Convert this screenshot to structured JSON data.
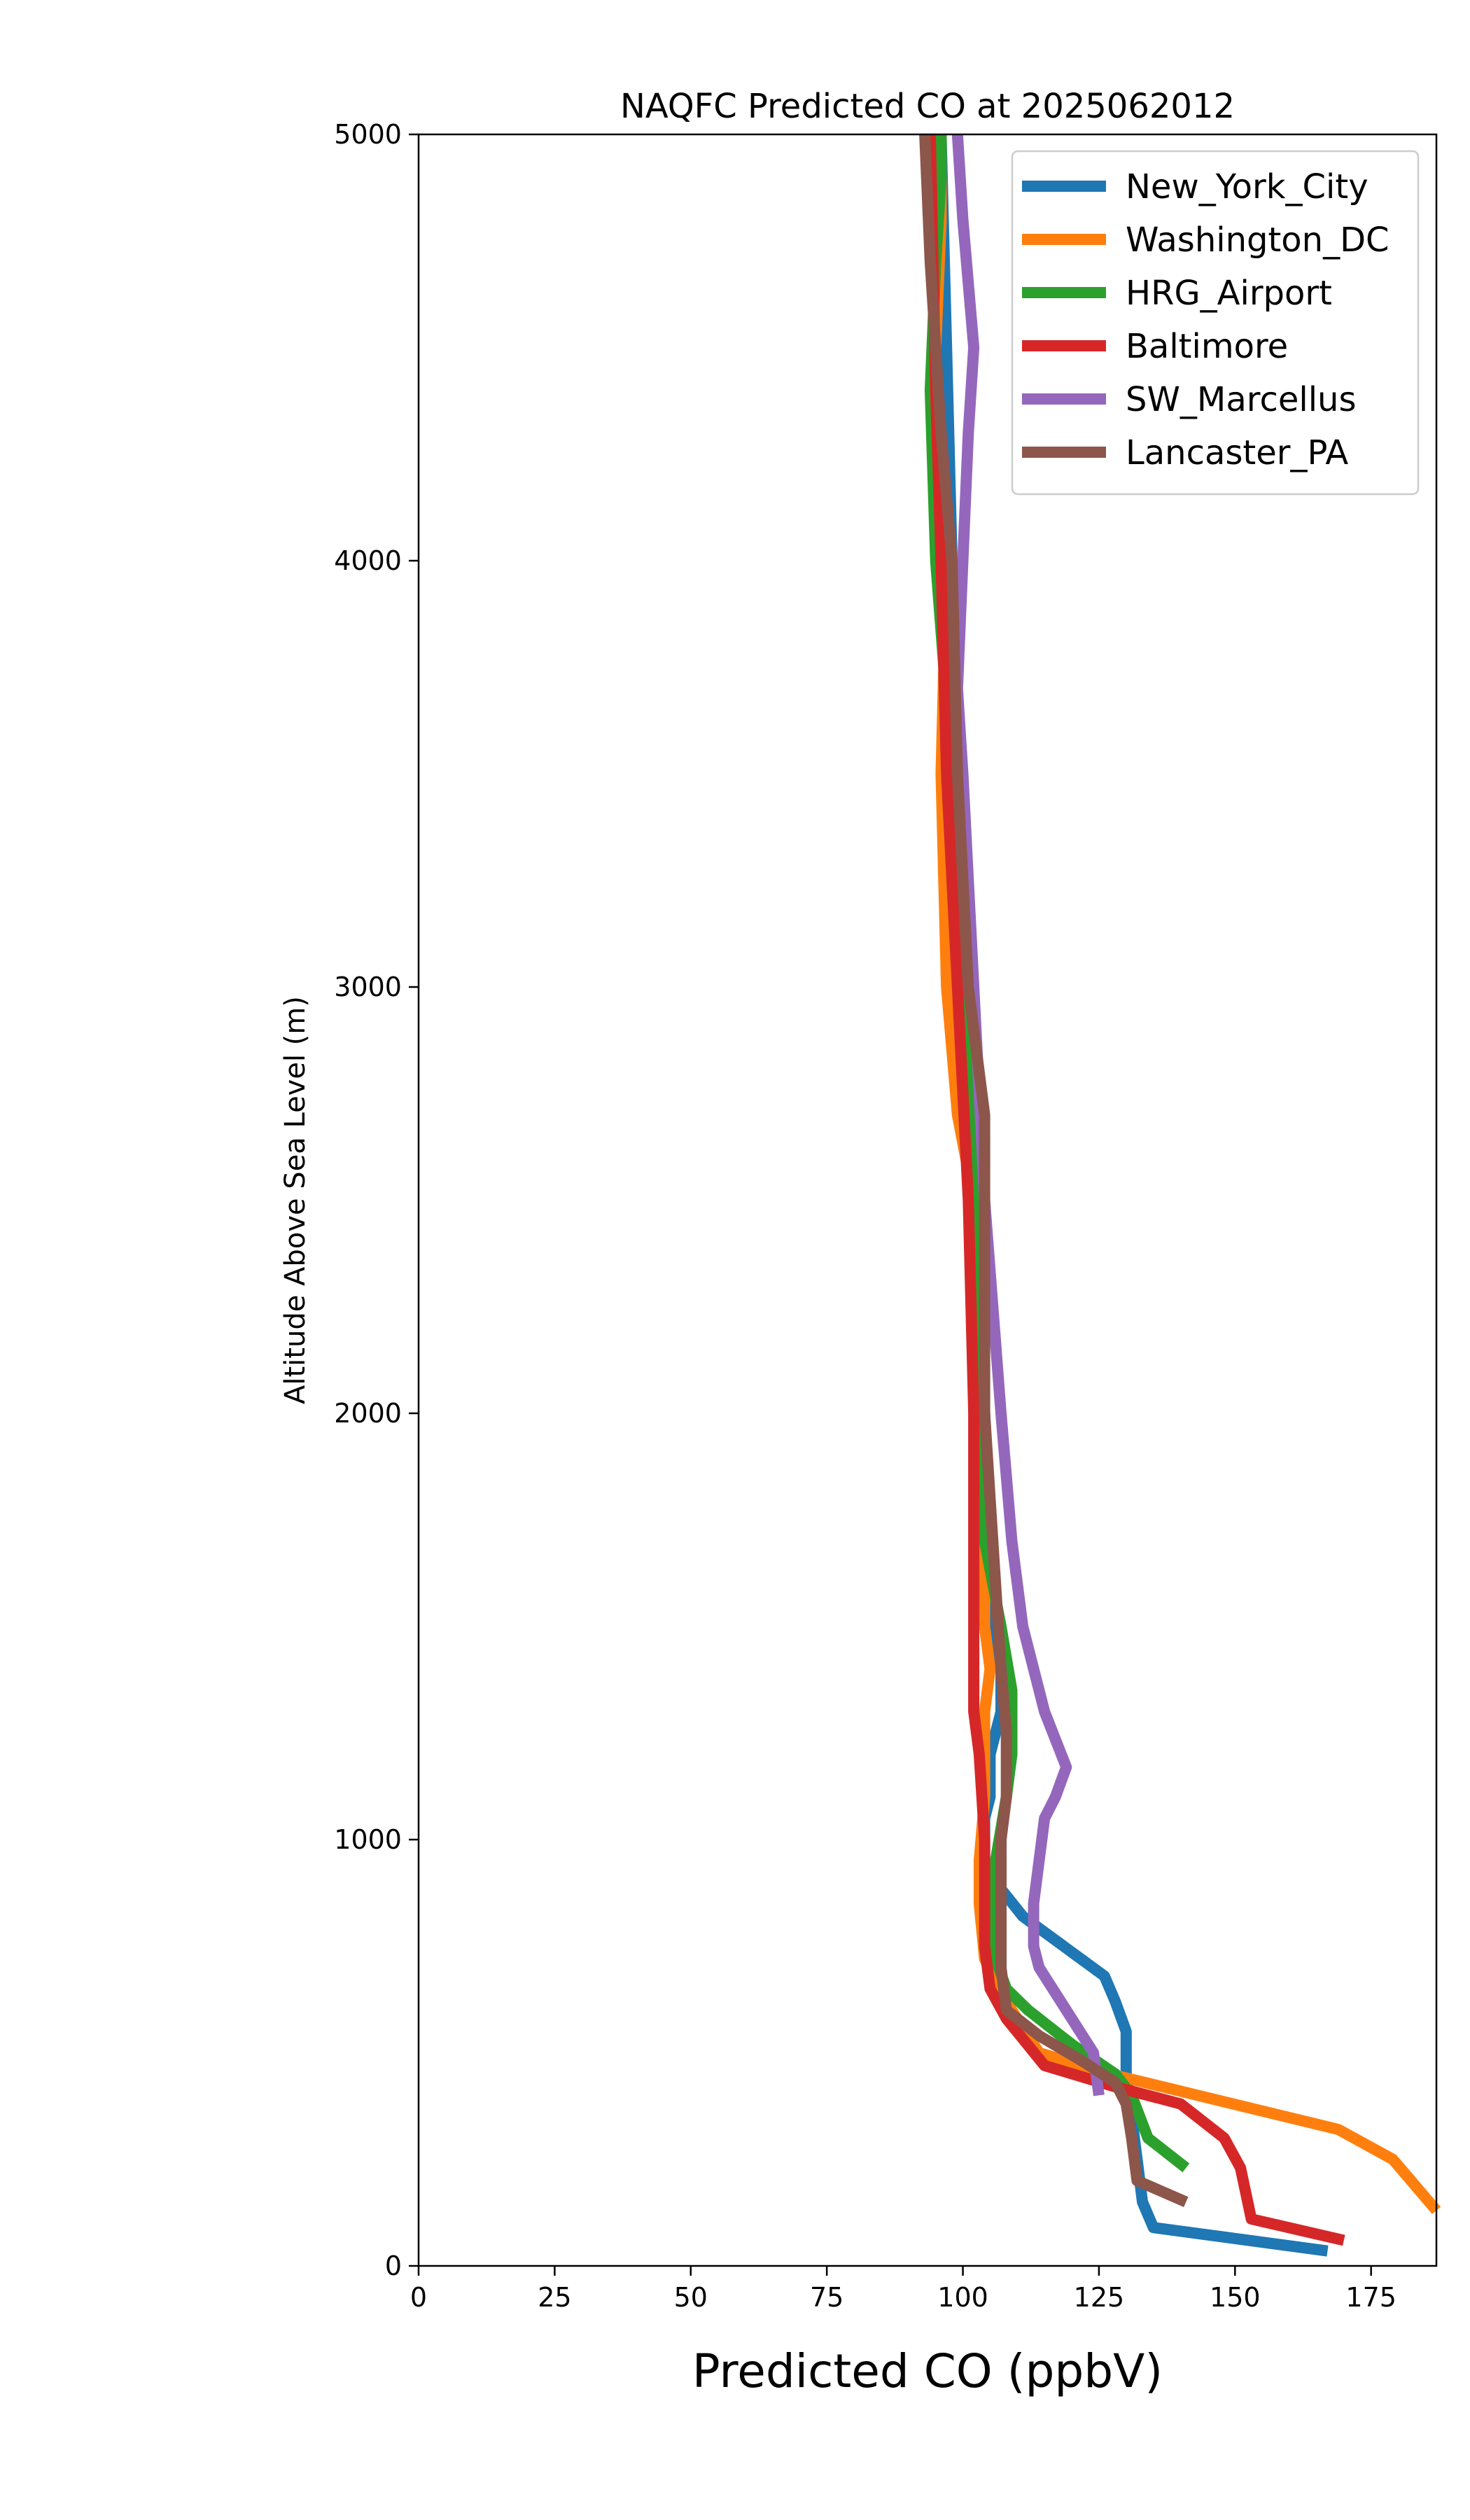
{
  "chart_data": {
    "type": "line",
    "title": "NAQFC Predicted CO at 2025062012",
    "xlabel": "Predicted CO (ppbV)",
    "ylabel": "Altitude Above Sea Level (m)",
    "xlim": [
      0,
      187
    ],
    "ylim": [
      0,
      5000
    ],
    "xticks": [
      0,
      25,
      50,
      75,
      100,
      125,
      150,
      175
    ],
    "yticks": [
      0,
      1000,
      2000,
      3000,
      4000,
      5000
    ],
    "grid": false,
    "legend_position": "top-right",
    "series": [
      {
        "name": "New_York_City",
        "color": "#1f77b4",
        "points": [
          [
            167,
            35
          ],
          [
            135,
            90
          ],
          [
            133,
            150
          ],
          [
            132,
            250
          ],
          [
            131,
            350
          ],
          [
            130,
            450
          ],
          [
            130,
            550
          ],
          [
            128,
            620
          ],
          [
            126,
            680
          ],
          [
            111,
            820
          ],
          [
            106,
            900
          ],
          [
            104,
            950
          ],
          [
            104,
            1000
          ],
          [
            104,
            1050
          ],
          [
            105,
            1100
          ],
          [
            105,
            1200
          ],
          [
            106,
            1250
          ],
          [
            107,
            1300
          ],
          [
            107,
            1350
          ],
          [
            107,
            1400
          ],
          [
            106,
            1500
          ],
          [
            105,
            1700
          ],
          [
            104,
            2000
          ],
          [
            103,
            2500
          ],
          [
            101,
            3000
          ],
          [
            99,
            3500
          ],
          [
            98,
            4000
          ],
          [
            97,
            4500
          ],
          [
            96,
            5000
          ]
        ]
      },
      {
        "name": "Washington_DC",
        "color": "#ff7f0e",
        "points": [
          [
            187,
            130
          ],
          [
            179,
            250
          ],
          [
            169,
            320
          ],
          [
            127,
            450
          ],
          [
            114,
            500
          ],
          [
            108,
            620
          ],
          [
            104,
            720
          ],
          [
            103,
            850
          ],
          [
            103,
            950
          ],
          [
            104,
            1100
          ],
          [
            104,
            1300
          ],
          [
            105,
            1400
          ],
          [
            104,
            1500
          ],
          [
            104,
            1700
          ],
          [
            104,
            2000
          ],
          [
            102,
            2500
          ],
          [
            99,
            2700
          ],
          [
            97,
            3000
          ],
          [
            96,
            3500
          ],
          [
            97,
            4000
          ],
          [
            95,
            4500
          ],
          [
            96,
            4800
          ],
          [
            96,
            5000
          ]
        ]
      },
      {
        "name": "HRG_Airport",
        "color": "#2ca02c",
        "points": [
          [
            141,
            230
          ],
          [
            134,
            300
          ],
          [
            131,
            400
          ],
          [
            128,
            450
          ],
          [
            120,
            520
          ],
          [
            112,
            600
          ],
          [
            108,
            650
          ],
          [
            106,
            720
          ],
          [
            105,
            850
          ],
          [
            106,
            950
          ],
          [
            108,
            1100
          ],
          [
            109,
            1200
          ],
          [
            109,
            1350
          ],
          [
            107,
            1500
          ],
          [
            104,
            1700
          ],
          [
            103,
            2000
          ],
          [
            102,
            2500
          ],
          [
            100,
            3000
          ],
          [
            98,
            3500
          ],
          [
            95,
            4000
          ],
          [
            94,
            4400
          ],
          [
            95,
            4700
          ],
          [
            96,
            4900
          ],
          [
            96,
            5000
          ]
        ]
      },
      {
        "name": "Baltimore",
        "color": "#d62728",
        "points": [
          [
            170,
            60
          ],
          [
            153,
            110
          ],
          [
            151,
            230
          ],
          [
            148,
            300
          ],
          [
            140,
            380
          ],
          [
            128,
            420
          ],
          [
            115,
            470
          ],
          [
            108,
            580
          ],
          [
            105,
            650
          ],
          [
            104,
            750
          ],
          [
            104,
            850
          ],
          [
            104,
            1000
          ],
          [
            103,
            1200
          ],
          [
            102,
            1300
          ],
          [
            102,
            1500
          ],
          [
            102,
            2000
          ],
          [
            101,
            2500
          ],
          [
            99,
            3000
          ],
          [
            97,
            3500
          ],
          [
            96,
            4000
          ],
          [
            95,
            4400
          ],
          [
            94,
            5000
          ]
        ]
      },
      {
        "name": "SW_Marcellus",
        "color": "#9467bd",
        "points": [
          [
            125,
            400
          ],
          [
            124,
            500
          ],
          [
            121,
            560
          ],
          [
            117,
            640
          ],
          [
            114,
            700
          ],
          [
            113,
            750
          ],
          [
            113,
            850
          ],
          [
            114,
            950
          ],
          [
            115,
            1050
          ],
          [
            117,
            1100
          ],
          [
            119,
            1170
          ],
          [
            115,
            1300
          ],
          [
            111,
            1500
          ],
          [
            109,
            1700
          ],
          [
            107,
            2000
          ],
          [
            104,
            2500
          ],
          [
            102,
            3000
          ],
          [
            100,
            3500
          ],
          [
            99,
            3700
          ],
          [
            100,
            4000
          ],
          [
            101,
            4300
          ],
          [
            102,
            4500
          ],
          [
            100,
            4800
          ],
          [
            99,
            5000
          ]
        ]
      },
      {
        "name": "Lancaster_PA",
        "color": "#8c564b",
        "points": [
          [
            141,
            150
          ],
          [
            132,
            200
          ],
          [
            131,
            300
          ],
          [
            130,
            380
          ],
          [
            128,
            430
          ],
          [
            122,
            480
          ],
          [
            114,
            540
          ],
          [
            108,
            600
          ],
          [
            107,
            700
          ],
          [
            107,
            800
          ],
          [
            107,
            900
          ],
          [
            107,
            1000
          ],
          [
            108,
            1100
          ],
          [
            108,
            1250
          ],
          [
            107,
            1400
          ],
          [
            106,
            1600
          ],
          [
            105,
            1800
          ],
          [
            104,
            2000
          ],
          [
            104,
            2400
          ],
          [
            104,
            2700
          ],
          [
            101,
            3000
          ],
          [
            99,
            3500
          ],
          [
            98,
            4000
          ],
          [
            96,
            4300
          ],
          [
            94,
            4700
          ],
          [
            93,
            5000
          ]
        ]
      }
    ]
  }
}
